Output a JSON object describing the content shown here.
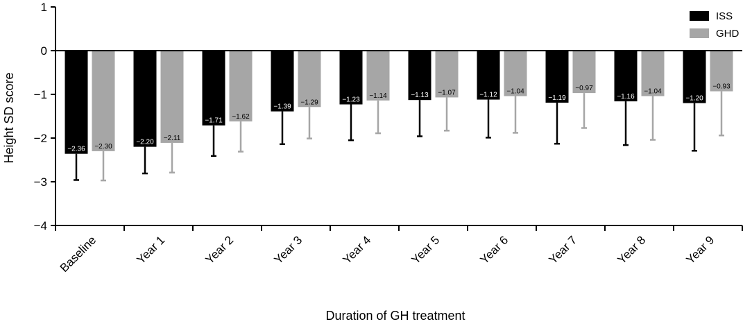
{
  "chart_data": {
    "type": "bar",
    "title": "",
    "xlabel": "Duration of GH treatment",
    "ylabel": "Height  SD score",
    "ylim": [
      -4,
      1
    ],
    "yticks": [
      1,
      0,
      -1,
      -2,
      -3,
      -4
    ],
    "ytick_labels": [
      "1",
      "0",
      "−1",
      "−2",
      "−3",
      "−4"
    ],
    "legend_position": "top-right",
    "categories": [
      "Baseline",
      "Year 1",
      "Year 2",
      "Year 3",
      "Year 4",
      "Year 5",
      "Year 6",
      "Year 7",
      "Year 8",
      "Year 9"
    ],
    "series": [
      {
        "name": "ISS",
        "color": "#000000",
        "values": [
          -2.36,
          -2.2,
          -1.71,
          -1.39,
          -1.23,
          -1.13,
          -1.12,
          -1.19,
          -1.16,
          -1.2
        ],
        "labels": [
          "−2.36",
          "−2.20",
          "−1.71",
          "−1.39",
          "−1.23",
          "−1.13",
          "−1.12",
          "−1.19",
          "−1.16",
          "−1.20"
        ],
        "error_low": [
          -2.96,
          -2.81,
          -2.41,
          -2.14,
          -2.05,
          -1.96,
          -1.99,
          -2.13,
          -2.16,
          -2.29
        ]
      },
      {
        "name": "GHD",
        "color": "#a6a6a6",
        "values": [
          -2.3,
          -2.11,
          -1.62,
          -1.29,
          -1.14,
          -1.07,
          -1.04,
          -0.97,
          -1.04,
          -0.93
        ],
        "labels": [
          "−2.30",
          "−2.11",
          "−1.62",
          "−1.29",
          "−1.14",
          "−1.07",
          "−1.04",
          "−0.97",
          "−1.04",
          "−0.93"
        ],
        "error_low": [
          -2.97,
          -2.79,
          -2.31,
          -2.01,
          -1.89,
          -1.83,
          -1.88,
          -1.77,
          -2.04,
          -1.94
        ]
      }
    ]
  }
}
